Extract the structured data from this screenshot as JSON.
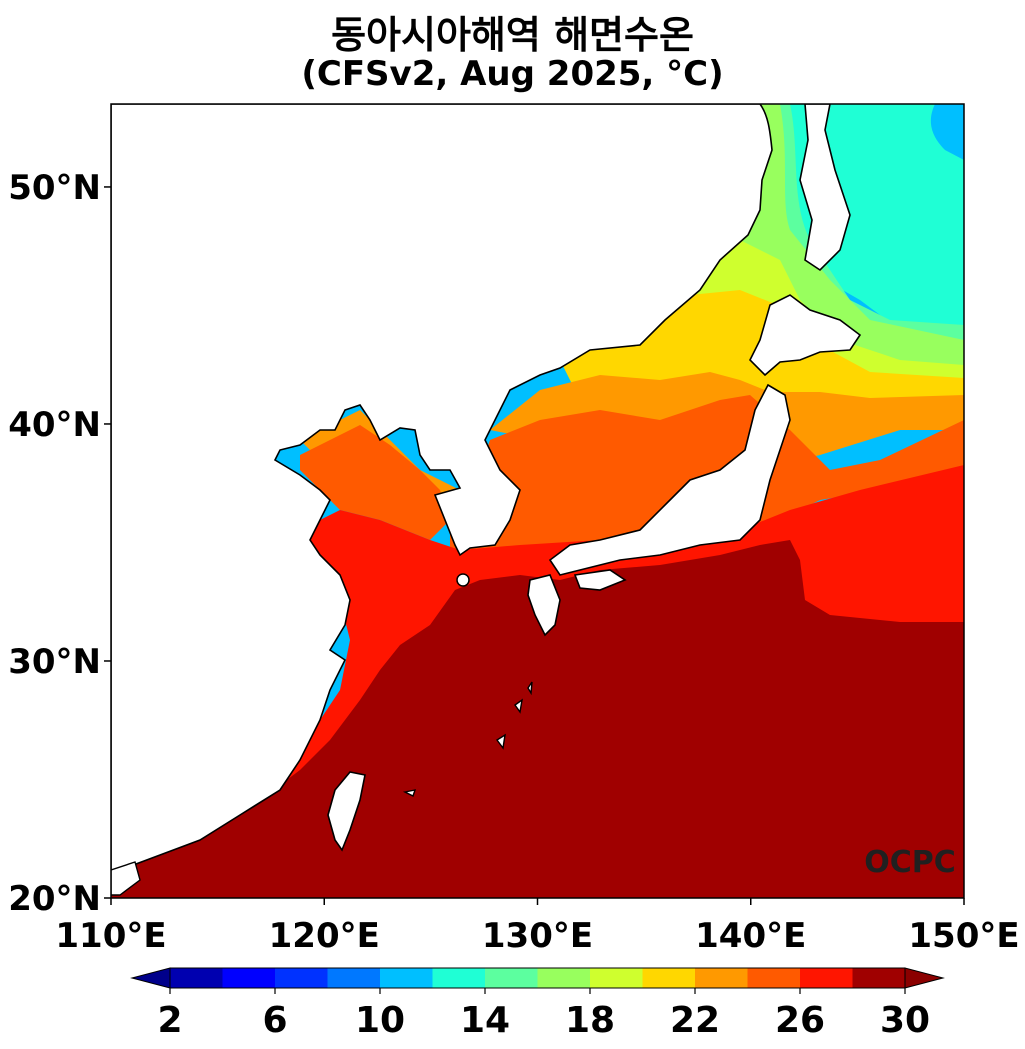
{
  "title": "동아시아해역 해면수온",
  "subtitle": "(CFSv2, Aug 2025, °C)",
  "watermark": "OCPC",
  "chart_data": {
    "type": "heatmap",
    "title": "동아시아해역 해면수온",
    "subtitle": "(CFSv2, Aug 2025, °C)",
    "xlim": [
      110,
      150
    ],
    "ylim": [
      20,
      53.5
    ],
    "x_ticks": [
      {
        "value": 110,
        "label": "110°E"
      },
      {
        "value": 120,
        "label": "120°E"
      },
      {
        "value": 130,
        "label": "130°E"
      },
      {
        "value": 140,
        "label": "140°E"
      },
      {
        "value": 150,
        "label": "150°E"
      }
    ],
    "y_ticks": [
      {
        "value": 20,
        "label": "20°N"
      },
      {
        "value": 30,
        "label": "30°N"
      },
      {
        "value": 40,
        "label": "40°N"
      },
      {
        "value": 50,
        "label": "50°N"
      }
    ],
    "colorbar": {
      "levels": [
        2,
        4,
        6,
        8,
        10,
        12,
        14,
        16,
        18,
        20,
        22,
        24,
        26,
        28,
        30
      ],
      "labels": [
        "2",
        "6",
        "10",
        "14",
        "18",
        "22",
        "26",
        "30"
      ],
      "label_values": [
        2,
        6,
        10,
        14,
        18,
        22,
        26,
        30
      ],
      "colors": [
        "#0000b0",
        "#0000ff",
        "#0032ff",
        "#0078ff",
        "#00bfff",
        "#1fffd5",
        "#5cff9f",
        "#98ff5e",
        "#cfff2e",
        "#ffd700",
        "#ff9900",
        "#ff5a00",
        "#ff1500",
        "#a00000"
      ],
      "under_color": "#00008b",
      "over_color": "#8b0000",
      "extend": "both"
    },
    "land_color": "#ffffff",
    "coastline_color": "#000000"
  }
}
